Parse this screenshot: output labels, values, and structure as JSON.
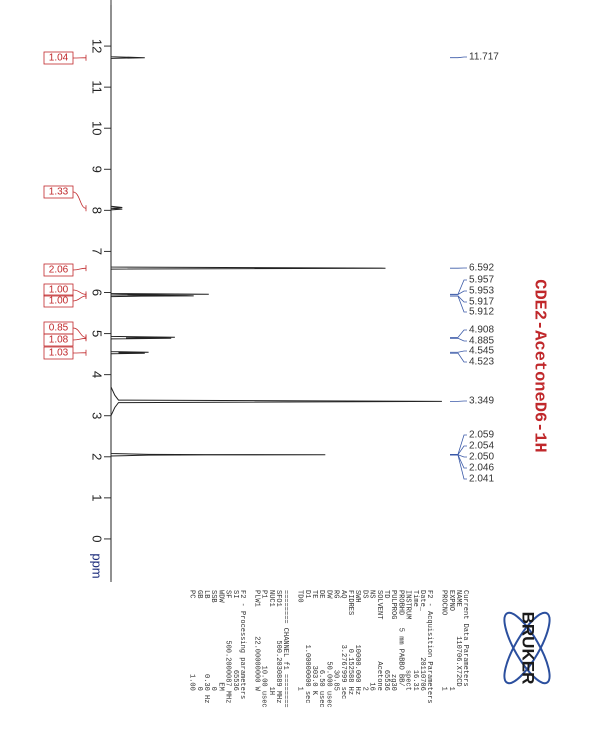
{
  "chart_data": {
    "type": "nmr",
    "title": "CDE2-AcetoneD6-1H",
    "axis_label": "ppm",
    "xlim": [
      13,
      -1
    ],
    "xticks": [
      0,
      1,
      2,
      3,
      4,
      5,
      6,
      7,
      8,
      9,
      10,
      11,
      12
    ],
    "ylim": [
      0,
      100
    ],
    "color": "#222222",
    "x": [
      13,
      11.74,
      11.717,
      11.7,
      8.1,
      8.07,
      8.05,
      8.03,
      8.01,
      6.62,
      6.592,
      6.57,
      5.975,
      5.957,
      5.953,
      5.94,
      5.925,
      5.917,
      5.912,
      5.9,
      4.93,
      4.908,
      4.895,
      4.885,
      4.87,
      4.56,
      4.545,
      4.535,
      4.523,
      4.51,
      3.7,
      3.5,
      3.38,
      3.349,
      3.32,
      3.2,
      3.0,
      2.08,
      2.059,
      2.054,
      2.05,
      2.046,
      2.041,
      2.02,
      1.9,
      -1
    ],
    "values": [
      0,
      0,
      9,
      0,
      0,
      3,
      0,
      3,
      0,
      0,
      73,
      0,
      0,
      26,
      8,
      0,
      20,
      22,
      8,
      0,
      0,
      17,
      4,
      16,
      0,
      0,
      10,
      2,
      9,
      0,
      0,
      1,
      2,
      88,
      2,
      1,
      0,
      0,
      10,
      25,
      57,
      25,
      10,
      0,
      0,
      0
    ],
    "peak_labels": [
      {
        "value": 11.717,
        "label": "11.717"
      },
      {
        "value": 6.592,
        "label": "6.592"
      },
      {
        "value": 5.957,
        "label": "5.957"
      },
      {
        "value": 5.953,
        "label": "5.953"
      },
      {
        "value": 5.917,
        "label": "5.917"
      },
      {
        "value": 5.912,
        "label": "5.912"
      },
      {
        "value": 4.908,
        "label": "4.908"
      },
      {
        "value": 4.885,
        "label": "4.885"
      },
      {
        "value": 4.545,
        "label": "4.545"
      },
      {
        "value": 4.523,
        "label": "4.523"
      },
      {
        "value": 3.349,
        "label": "3.349"
      },
      {
        "value": 2.059,
        "label": "2.059"
      },
      {
        "value": 2.054,
        "label": "2.054"
      },
      {
        "value": 2.05,
        "label": "2.050"
      },
      {
        "value": 2.046,
        "label": "2.046"
      },
      {
        "value": 2.041,
        "label": "2.041"
      }
    ],
    "integrals": {
      "x": [
        11.717,
        8.05,
        6.592,
        5.955,
        5.915,
        4.908,
        4.885,
        4.534
      ],
      "values": [
        1.04,
        1.33,
        2.06,
        1,
        1,
        0.85,
        1.08,
        1.03
      ],
      "value_labels": [
        "1.04",
        "1.33",
        "2.06",
        "1.00",
        "1.00",
        "0.85",
        "1.08",
        "1.03"
      ]
    },
    "logo": "BRUKER",
    "parameters": [
      [
        "Current Data Parameters",
        "NAME       110706.X72CD",
        "EXPNO                  1",
        "PROCNO                 1"
      ],
      [
        "F2 - Acquisition Parameters",
        "Date_           20110706",
        "Time               16.31",
        "INSTRUM            spect",
        "PROBHD   5 mm PABBO BB/",
        "PULPROG             zg30",
        "TD                 65536",
        "SOLVENT          Acetone",
        "NS                    16",
        "DS                     2",
        "SWH          10000.000 Hz",
        "FIDRES        0.152588 Hz",
        "AQ           3.2767999 sec",
        "RG                 30.85",
        "DW               50.000 usec",
        "DE                 6.50 usec",
        "TE                303.0 K",
        "D1           1.00000000 sec",
        "TD0                    1"
      ],
      [
        "======== CHANNEL f1 ========",
        "SFO1        500.2030889 MHz",
        "NUC1                   1H",
        "P1                10.00 usec",
        "PLW1       22.00000000 W"
      ],
      [
        "F2 - Processing parameters",
        "SI                 65536",
        "SF          500.2000087 MHz",
        "WDW                   EM",
        "SSB                    0",
        "LB                  0.30 Hz",
        "GB                     0",
        "PC                  1.00"
      ]
    ]
  }
}
